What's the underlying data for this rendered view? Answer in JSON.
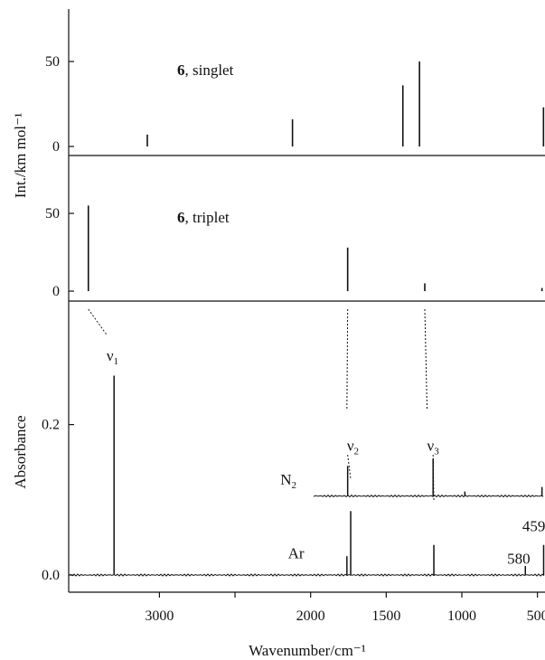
{
  "chart_data": [
    {
      "type": "bar",
      "panel": "top",
      "label_bold": "6",
      "label_rest": ", singlet",
      "ylabel": "Int./km mol⁻¹",
      "ylim": [
        0,
        80
      ],
      "yticks": [
        0,
        50
      ],
      "xlim": [
        3600,
        450
      ],
      "series": [
        {
          "x": [
            3080,
            2120,
            1390,
            1280,
            460
          ],
          "values": [
            7,
            16,
            36,
            50,
            23
          ]
        }
      ]
    },
    {
      "type": "bar",
      "panel": "middle",
      "label_bold": "6",
      "label_rest": ", triplet",
      "ylim": [
        0,
        80
      ],
      "yticks": [
        0,
        50
      ],
      "xlim": [
        3600,
        450
      ],
      "series": [
        {
          "x": [
            3470,
            1755,
            1245,
            470
          ],
          "values": [
            55,
            28,
            5,
            2
          ]
        }
      ]
    },
    {
      "type": "line",
      "panel": "bottom",
      "xlabel": "Wavenumber/cm⁻¹",
      "ylabel": "Absorbance",
      "xlim": [
        3600,
        450
      ],
      "ylim": [
        -0.02,
        0.32
      ],
      "xticks": [
        3000,
        2500,
        2000,
        1500,
        1000,
        500
      ],
      "xtick_labels": [
        "3000",
        "",
        "2000",
        "1500",
        "1000",
        "500"
      ],
      "yticks": [
        0.0,
        0.2
      ],
      "ytick_labels": [
        "0.0",
        "0.2"
      ],
      "series": [
        {
          "name": "N2",
          "baseline": 0.105,
          "x_start": 1980,
          "x_end": 450,
          "peaks": [
            [
              1755,
              0.04
            ],
            [
              1190,
              0.05
            ],
            [
              980,
              0.006
            ],
            [
              470,
              0.012
            ]
          ]
        },
        {
          "name": "Ar",
          "baseline": 0.0,
          "x_start": 3600,
          "x_end": 450,
          "peaks": [
            [
              3300,
              0.265
            ],
            [
              1735,
              0.085
            ],
            [
              1760,
              0.025
            ],
            [
              1185,
              0.04
            ],
            [
              580,
              0.012
            ],
            [
              459,
              0.04
            ]
          ]
        }
      ],
      "annotations": [
        {
          "text": "ν",
          "sub": "1",
          "x": 3350,
          "y": 0.285
        },
        {
          "text": "ν",
          "sub": "2",
          "x": 1760,
          "y": 0.165
        },
        {
          "text": "ν",
          "sub": "3",
          "x": 1230,
          "y": 0.165
        },
        {
          "text": "N",
          "sub": "2",
          "x": 2200,
          "y": 0.12
        },
        {
          "text": "Ar",
          "sub": "",
          "x": 2150,
          "y": 0.022
        },
        {
          "text": "459",
          "sub": "",
          "x": 600,
          "y": 0.058
        },
        {
          "text": "580",
          "sub": "",
          "x": 700,
          "y": 0.015
        }
      ]
    }
  ]
}
